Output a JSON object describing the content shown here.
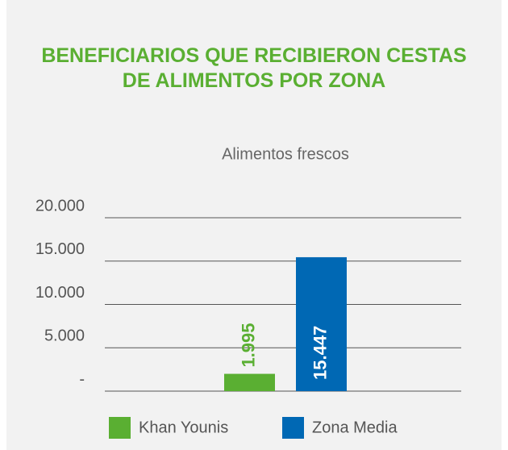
{
  "chart_data": {
    "type": "bar",
    "title": "BENEFICIARIOS QUE RECIBIERON CESTAS DE ALIMENTOS POR ZONA",
    "categories": [
      "Alimentos frescos"
    ],
    "series": [
      {
        "name": "Khan Younis",
        "color": "#5aaf32",
        "values": [
          1995
        ],
        "value_labels": [
          "1.995"
        ]
      },
      {
        "name": "Zona Media",
        "color": "#0068b4",
        "values": [
          15447
        ],
        "value_labels": [
          "15.447"
        ]
      }
    ],
    "ylim": [
      0,
      20000
    ],
    "yticks": [
      {
        "value": 0,
        "label": "-"
      },
      {
        "value": 5000,
        "label": "5.000"
      },
      {
        "value": 10000,
        "label": "10.000"
      },
      {
        "value": 15000,
        "label": "15.000"
      },
      {
        "value": 20000,
        "label": "20.000"
      }
    ],
    "grid": true,
    "legend": "bottom"
  }
}
